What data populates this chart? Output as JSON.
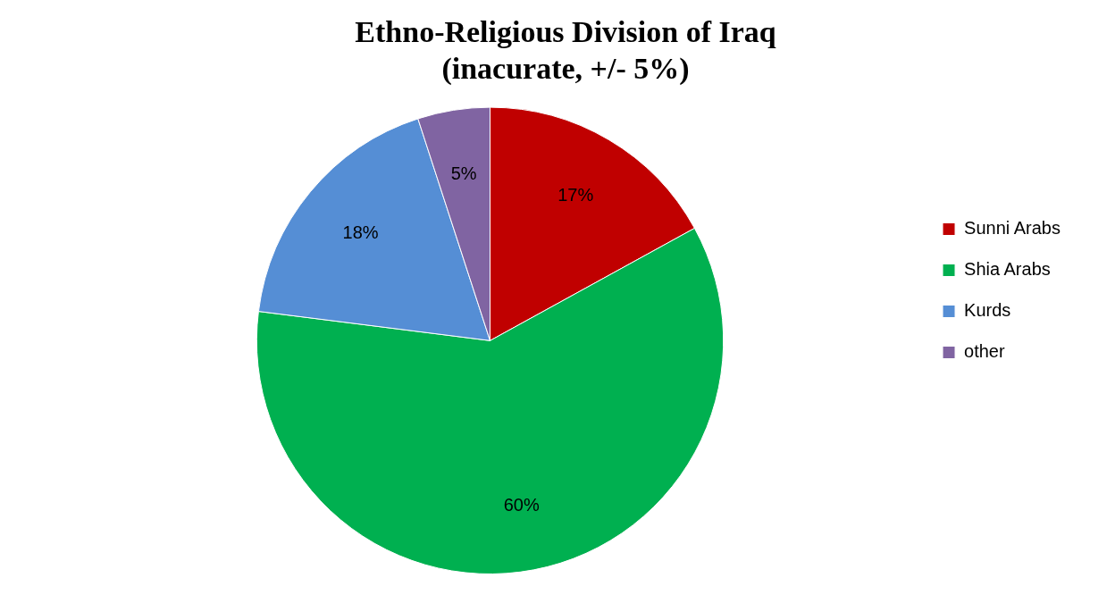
{
  "chart_data": {
    "type": "pie",
    "title": "Ethno-Religious Division of Iraq\n(inacurate, +/- 5%)",
    "categories": [
      "Sunni Arabs",
      "Shia Arabs",
      "Kurds",
      "other"
    ],
    "values": [
      17,
      60,
      18,
      5
    ],
    "colors": [
      "#c00000",
      "#00b050",
      "#558ed5",
      "#8064a2"
    ],
    "value_labels": [
      "17%",
      "60%",
      "18%",
      "5%"
    ],
    "legend": "right"
  }
}
